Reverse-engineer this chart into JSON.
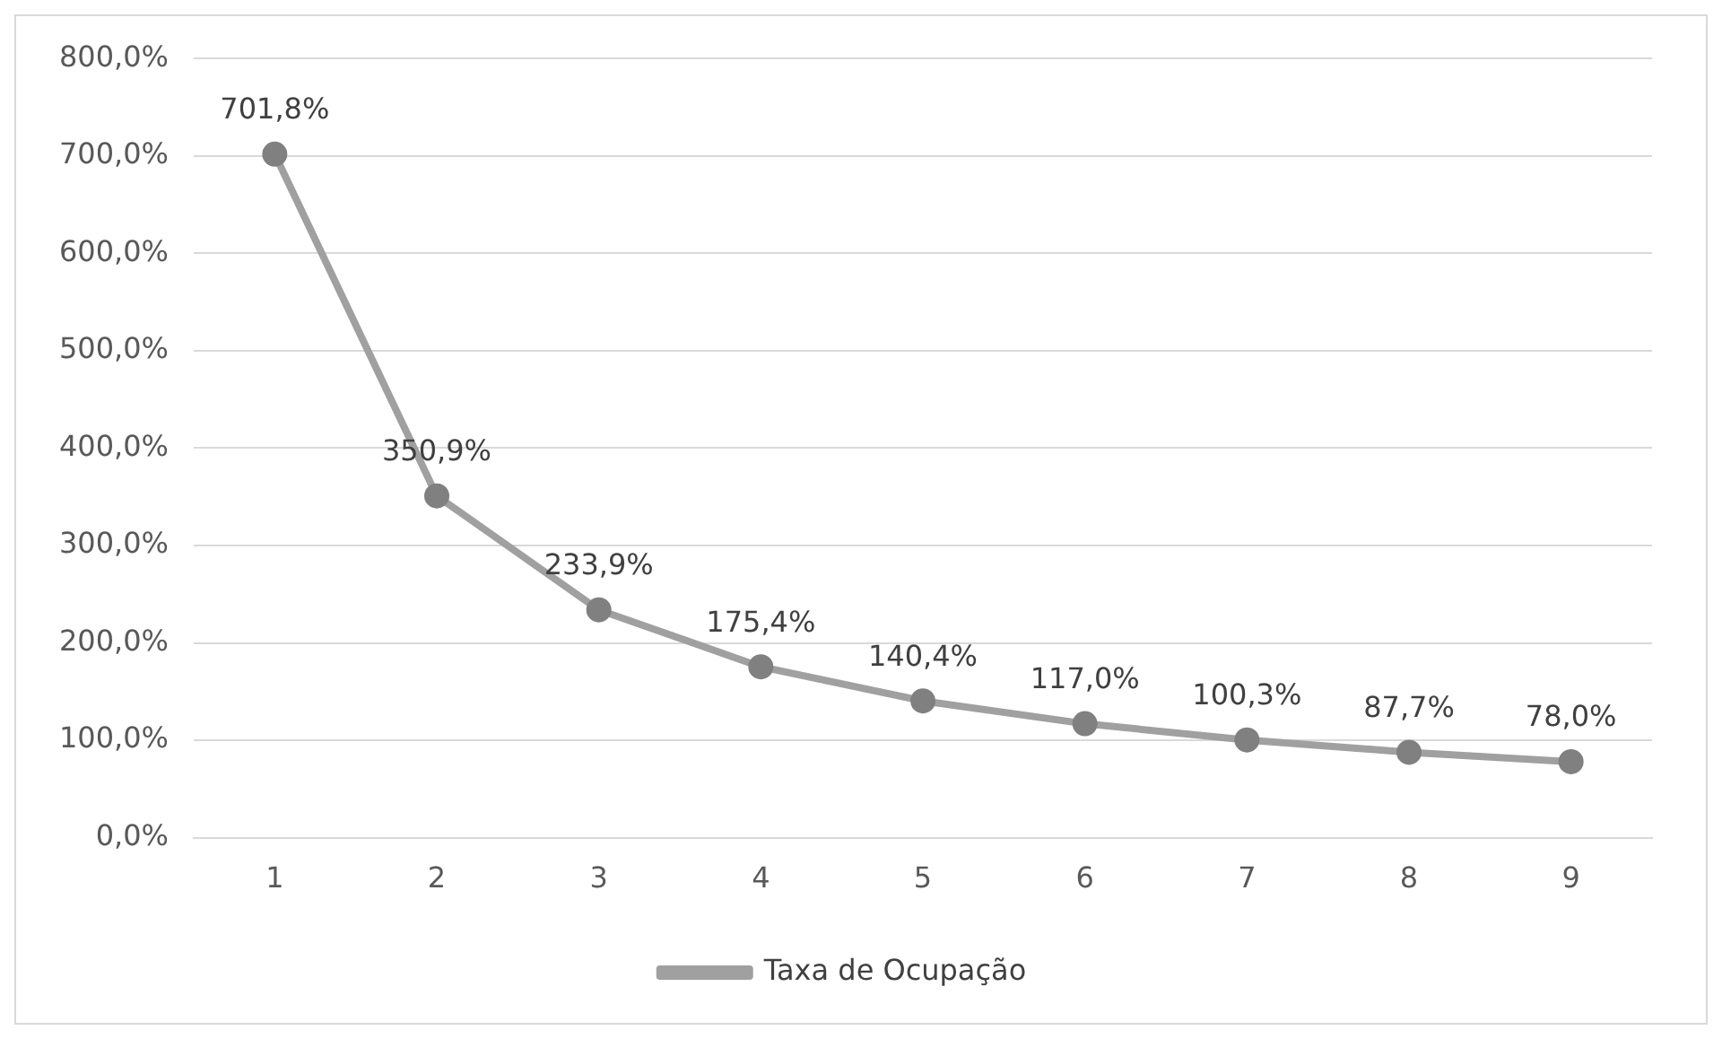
{
  "chart_data": {
    "type": "line",
    "categories": [
      "1",
      "2",
      "3",
      "4",
      "5",
      "6",
      "7",
      "8",
      "9"
    ],
    "series": [
      {
        "name": "Taxa de Ocupação",
        "color": "#a0a0a0",
        "values": [
          701.8,
          350.9,
          233.9,
          175.4,
          140.4,
          117.0,
          100.3,
          87.7,
          78.0
        ],
        "value_labels": [
          "701,8%",
          "350,9%",
          "233,9%",
          "175,4%",
          "140,4%",
          "117,0%",
          "100,3%",
          "87,7%",
          "78,0%"
        ]
      }
    ],
    "ylim": [
      0,
      800
    ],
    "yticks": [
      {
        "value": 0,
        "label": "0,0%"
      },
      {
        "value": 100,
        "label": "100,0%"
      },
      {
        "value": 200,
        "label": "200,0%"
      },
      {
        "value": 300,
        "label": "300,0%"
      },
      {
        "value": 400,
        "label": "400,0%"
      },
      {
        "value": 500,
        "label": "500,0%"
      },
      {
        "value": 600,
        "label": "600,0%"
      },
      {
        "value": 700,
        "label": "700,0%"
      },
      {
        "value": 800,
        "label": "800,0%"
      }
    ],
    "grid": "y",
    "legend": "bottom",
    "marker": "circle",
    "line_style": "solid"
  }
}
